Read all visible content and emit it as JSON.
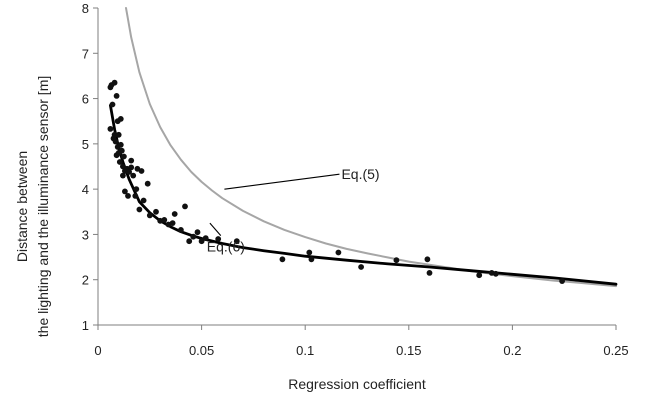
{
  "chart_data": {
    "type": "scatter",
    "title": "",
    "xlabel": "Regression coefficient",
    "ylabel_lines": [
      "Distance between",
      "the lighting and the illuminance sensor [m]"
    ],
    "xlim": [
      0,
      0.25
    ],
    "ylim": [
      1,
      8
    ],
    "x_ticks": [
      0,
      0.05,
      0.1,
      0.15,
      0.2,
      0.25
    ],
    "x_tick_labels": [
      "0",
      "0.05",
      "0.1",
      "0.15",
      "0.2",
      "0.25"
    ],
    "y_ticks": [
      1,
      2,
      3,
      4,
      5,
      6,
      7,
      8
    ],
    "y_tick_labels": [
      "1",
      "2",
      "3",
      "4",
      "5",
      "6",
      "7",
      "8"
    ],
    "grid": false,
    "colors": {
      "points": "#111111",
      "eq5_curve": "#a6a6a6",
      "eq6_curve": "#000000",
      "axis": "#7f7f7f"
    },
    "points": [
      [
        0.006,
        5.33
      ],
      [
        0.006,
        6.25
      ],
      [
        0.0065,
        6.3
      ],
      [
        0.007,
        5.87
      ],
      [
        0.0075,
        5.12
      ],
      [
        0.008,
        5.2
      ],
      [
        0.008,
        6.35
      ],
      [
        0.0085,
        5.05
      ],
      [
        0.009,
        6.06
      ],
      [
        0.009,
        4.75
      ],
      [
        0.0095,
        4.93
      ],
      [
        0.0095,
        5.5
      ],
      [
        0.01,
        4.8
      ],
      [
        0.01,
        5.2
      ],
      [
        0.0105,
        4.6
      ],
      [
        0.011,
        4.98
      ],
      [
        0.011,
        5.55
      ],
      [
        0.0115,
        4.85
      ],
      [
        0.012,
        4.5
      ],
      [
        0.012,
        4.3
      ],
      [
        0.0125,
        4.72
      ],
      [
        0.013,
        4.4
      ],
      [
        0.013,
        3.95
      ],
      [
        0.014,
        4.45
      ],
      [
        0.0145,
        3.85
      ],
      [
        0.015,
        4.38
      ],
      [
        0.016,
        4.63
      ],
      [
        0.016,
        4.48
      ],
      [
        0.017,
        4.3
      ],
      [
        0.018,
        3.85
      ],
      [
        0.0185,
        4.0
      ],
      [
        0.019,
        4.45
      ],
      [
        0.02,
        3.55
      ],
      [
        0.021,
        4.4
      ],
      [
        0.022,
        3.75
      ],
      [
        0.024,
        4.12
      ],
      [
        0.025,
        3.42
      ],
      [
        0.028,
        3.5
      ],
      [
        0.03,
        3.3
      ],
      [
        0.032,
        3.32
      ],
      [
        0.034,
        3.22
      ],
      [
        0.036,
        3.25
      ],
      [
        0.037,
        3.45
      ],
      [
        0.04,
        3.1
      ],
      [
        0.042,
        3.62
      ],
      [
        0.044,
        2.85
      ],
      [
        0.046,
        2.95
      ],
      [
        0.048,
        3.05
      ],
      [
        0.05,
        2.85
      ],
      [
        0.052,
        2.92
      ],
      [
        0.058,
        2.9
      ],
      [
        0.067,
        2.85
      ],
      [
        0.089,
        2.45
      ],
      [
        0.102,
        2.6
      ],
      [
        0.103,
        2.45
      ],
      [
        0.116,
        2.6
      ],
      [
        0.127,
        2.28
      ],
      [
        0.144,
        2.43
      ],
      [
        0.159,
        2.45
      ],
      [
        0.16,
        2.15
      ],
      [
        0.184,
        2.1
      ],
      [
        0.19,
        2.15
      ],
      [
        0.192,
        2.13
      ],
      [
        0.224,
        1.97
      ]
    ],
    "series": [
      {
        "name": "Eq.(5)",
        "x": [
          0.01352,
          0.016,
          0.02,
          0.025,
          0.03,
          0.035,
          0.04,
          0.045,
          0.05,
          0.055,
          0.06,
          0.07,
          0.08,
          0.09,
          0.1,
          0.11,
          0.12,
          0.13,
          0.14,
          0.15,
          0.16,
          0.17,
          0.18,
          0.19,
          0.2,
          0.21,
          0.22,
          0.23,
          0.24,
          0.25
        ],
        "y": [
          8.0,
          7.35,
          6.58,
          5.88,
          5.37,
          4.97,
          4.65,
          4.38,
          4.16,
          3.97,
          3.8,
          3.52,
          3.29,
          3.1,
          2.94,
          2.8,
          2.68,
          2.58,
          2.49,
          2.4,
          2.33,
          2.26,
          2.19,
          2.13,
          2.08,
          2.03,
          1.98,
          1.94,
          1.9,
          1.86
        ]
      },
      {
        "name": "Eq.(6)",
        "x": [
          0.006,
          0.008,
          0.01,
          0.012,
          0.015,
          0.02,
          0.025,
          0.03,
          0.035,
          0.04,
          0.045,
          0.05,
          0.06,
          0.07,
          0.08,
          0.09,
          0.1,
          0.12,
          0.14,
          0.16,
          0.18,
          0.2,
          0.22,
          0.25
        ],
        "y": [
          5.85,
          5.32,
          4.92,
          4.6,
          4.22,
          3.72,
          3.48,
          3.3,
          3.17,
          3.06,
          2.98,
          2.91,
          2.8,
          2.71,
          2.64,
          2.58,
          2.52,
          2.43,
          2.35,
          2.28,
          2.2,
          2.12,
          2.04,
          1.9
        ]
      }
    ],
    "annotations": [
      {
        "label": "Eq.(5)",
        "text_at": [
          0.1175,
          4.22
        ],
        "arrow_to": [
          0.061,
          4.0
        ]
      },
      {
        "label": "Eq.(6)",
        "text_at": [
          0.0525,
          2.62
        ],
        "arrow_to": [
          0.054,
          3.25
        ]
      }
    ]
  }
}
